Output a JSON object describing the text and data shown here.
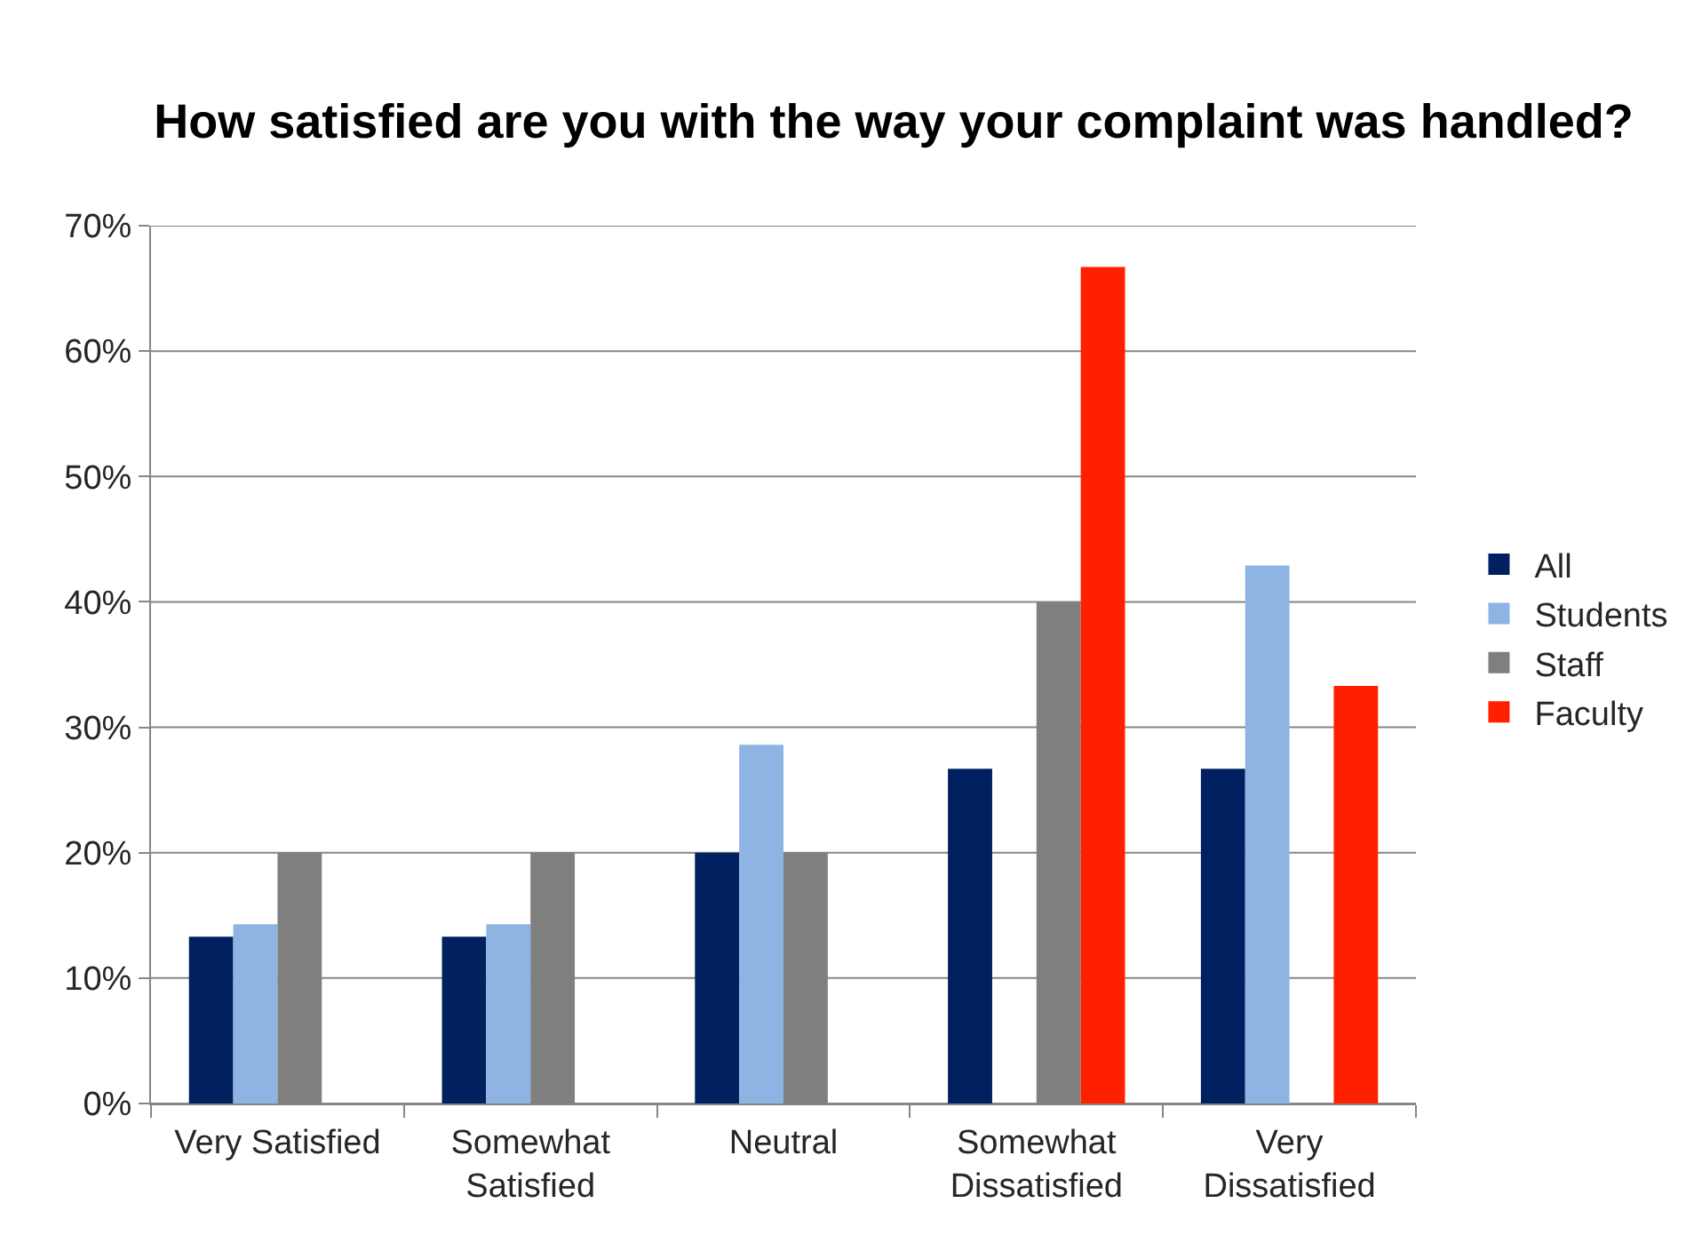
{
  "chart_data": {
    "type": "bar",
    "title": "How satisfied are you with the way your complaint was handled?",
    "categories": [
      "Very Satisfied",
      "Somewhat Satisfied",
      "Neutral",
      "Somewhat Dissatisfied",
      "Very Dissatisfied"
    ],
    "series": [
      {
        "name": "All",
        "color": "#002060",
        "values": [
          13.3,
          13.3,
          20,
          26.7,
          26.7
        ]
      },
      {
        "name": "Students",
        "color": "#8db4e2",
        "values": [
          14.3,
          14.3,
          28.6,
          0,
          42.9
        ]
      },
      {
        "name": "Staff",
        "color": "#7f7f7f",
        "values": [
          20,
          20,
          20,
          40,
          0
        ]
      },
      {
        "name": "Faculty",
        "color": "#ff2000",
        "values": [
          0,
          0,
          0,
          66.7,
          33.3
        ]
      }
    ],
    "ylim": [
      0,
      70
    ],
    "yticks": [
      {
        "value": 0,
        "label": "0%"
      },
      {
        "value": 10,
        "label": "10%"
      },
      {
        "value": 20,
        "label": "20%"
      },
      {
        "value": 30,
        "label": "30%"
      },
      {
        "value": 40,
        "label": "40%"
      },
      {
        "value": 50,
        "label": "50%"
      },
      {
        "value": 60,
        "label": "60%"
      },
      {
        "value": 70,
        "label": "70%"
      }
    ],
    "grid": "y",
    "legend": "right"
  }
}
